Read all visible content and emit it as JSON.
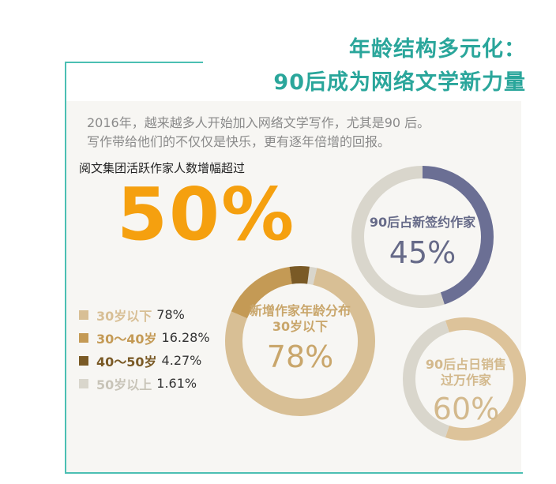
{
  "title": {
    "line1": "年龄结构多元化：",
    "line2": "90后成为网络文学新力量"
  },
  "intro": {
    "line1": "2016年，越来越多人开始加入网络文学写作，尤其是90 后。",
    "line2": "写作带给他们的不仅仅是快乐，更有逐年倍增的回报。"
  },
  "highlight": {
    "label": "阅文集团活跃作家人数增幅超过",
    "value": "50%"
  },
  "chart_data": [
    {
      "type": "pie",
      "label_line1": "新增作家年龄分布",
      "label_line2": "30岁以下",
      "center_value": "78%",
      "slices": [
        {
          "name": "30岁以下",
          "value_text": "78%",
          "value": 78,
          "color": "#d8bf95"
        },
        {
          "name": "30～40岁",
          "value_text": "16.28%",
          "value": 16.28,
          "color": "#c49a55"
        },
        {
          "name": "40～50岁",
          "value_text": "4.27%",
          "value": 4.27,
          "color": "#7a5a26"
        },
        {
          "name": "50岁以上",
          "value_text": "1.61%",
          "value": 1.61,
          "color": "#d9d6cc"
        }
      ]
    },
    {
      "type": "pie",
      "label": "90后占新签约作家",
      "center_value": "45%",
      "value": 45,
      "color": "#6b6f94",
      "rest_color": "#d9d6cc"
    },
    {
      "type": "pie",
      "label_line1": "90后占日销售",
      "label_line2": "过万作家",
      "center_value": "60%",
      "value": 60,
      "color": "#ddc39a",
      "rest_color": "#d9d6cc"
    }
  ]
}
